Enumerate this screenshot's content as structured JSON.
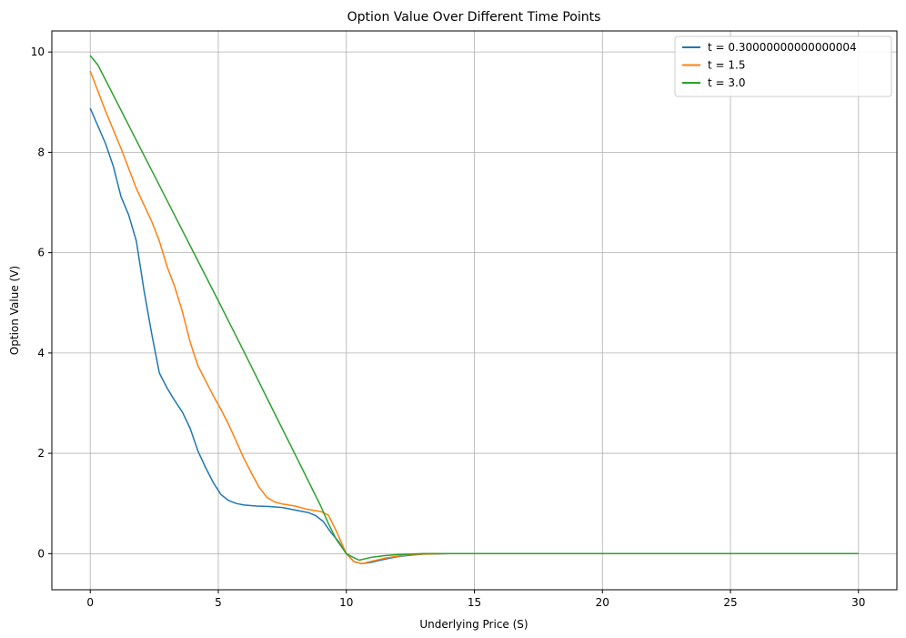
{
  "chart_data": {
    "type": "line",
    "title": "Option Value Over Different Time Points",
    "xlabel": "Underlying Price (S)",
    "ylabel": "Option Value (V)",
    "xlim": [
      -1.5,
      31.5
    ],
    "ylim": [
      -0.72,
      10.42
    ],
    "xticks": [
      0,
      5,
      10,
      15,
      20,
      25,
      30
    ],
    "yticks": [
      0,
      2,
      4,
      6,
      8,
      10
    ],
    "grid": true,
    "legend_position": "top-right",
    "series": [
      {
        "name": "t = 0.30000000000000004",
        "color": "#1f77b4",
        "x": [
          0,
          0.6,
          0.9,
          1.2,
          1.5,
          1.8,
          2.1,
          2.4,
          2.7,
          3.0,
          3.3,
          3.6,
          3.9,
          4.2,
          4.5,
          4.8,
          5.1,
          5.4,
          5.7,
          6.0,
          6.5,
          7.0,
          7.5,
          8.0,
          8.5,
          8.8,
          9.1,
          9.4,
          9.7,
          10.0,
          10.3,
          10.6,
          11.0,
          11.5,
          12.0,
          12.5,
          13.0,
          14.0,
          16.0,
          20.0,
          25.0,
          30.0
        ],
        "y": [
          8.88,
          8.17,
          7.72,
          7.12,
          6.75,
          6.23,
          5.25,
          4.38,
          3.6,
          3.3,
          3.05,
          2.82,
          2.5,
          2.05,
          1.72,
          1.42,
          1.18,
          1.06,
          1.0,
          0.97,
          0.95,
          0.94,
          0.92,
          0.87,
          0.82,
          0.76,
          0.64,
          0.42,
          0.24,
          0.0,
          -0.16,
          -0.2,
          -0.17,
          -0.11,
          -0.06,
          -0.03,
          -0.01,
          0.0,
          0.0,
          0.0,
          0.0,
          0.0
        ]
      },
      {
        "name": "t = 1.5",
        "color": "#ff7f0e",
        "x": [
          0,
          0.6,
          1.2,
          1.8,
          2.4,
          2.7,
          3.0,
          3.3,
          3.6,
          3.9,
          4.2,
          4.5,
          4.8,
          5.1,
          5.4,
          5.7,
          6.0,
          6.3,
          6.6,
          6.9,
          7.2,
          7.5,
          8.0,
          8.5,
          9.0,
          9.3,
          9.6,
          10.0,
          10.3,
          10.6,
          11.0,
          11.5,
          12.0,
          12.5,
          13.0,
          14.0,
          16.0,
          20.0,
          25.0,
          30.0
        ],
        "y": [
          9.62,
          8.82,
          8.08,
          7.28,
          6.62,
          6.23,
          5.72,
          5.32,
          4.82,
          4.22,
          3.75,
          3.45,
          3.15,
          2.88,
          2.58,
          2.24,
          1.9,
          1.6,
          1.32,
          1.12,
          1.03,
          0.99,
          0.95,
          0.88,
          0.84,
          0.77,
          0.46,
          0.0,
          -0.16,
          -0.2,
          -0.15,
          -0.09,
          -0.05,
          -0.02,
          -0.01,
          0.0,
          0.0,
          0.0,
          0.0,
          0.0
        ]
      },
      {
        "name": "t = 3.0",
        "color": "#2ca02c",
        "x": [
          0,
          0.3,
          1.0,
          2.0,
          3.0,
          4.0,
          5.0,
          6.0,
          7.0,
          8.0,
          9.0,
          9.3,
          9.6,
          10.0,
          10.25,
          10.5,
          11.0,
          11.5,
          12.0,
          12.5,
          13.0,
          14.0,
          16.0,
          20.0,
          25.0,
          30.0
        ],
        "y": [
          9.93,
          9.74,
          9.04,
          8.04,
          7.04,
          6.04,
          5.04,
          4.03,
          3.0,
          1.98,
          0.95,
          0.6,
          0.29,
          0.0,
          -0.07,
          -0.13,
          -0.07,
          -0.04,
          -0.02,
          -0.01,
          0.0,
          0.0,
          0.0,
          0.0,
          0.0,
          0.0
        ]
      }
    ]
  }
}
